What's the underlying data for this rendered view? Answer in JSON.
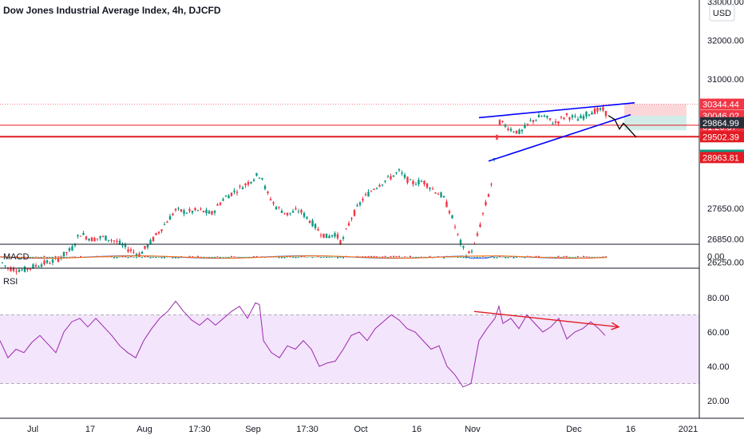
{
  "chart_data": {
    "type": "candlestick",
    "title": "Dow Jones Industrial Average Index, 4h, DJCFD",
    "currency_button": "USD",
    "price_axis_ticks": [
      {
        "label": "33000.00",
        "value": 33000
      },
      {
        "label": "32000.00",
        "value": 32000
      },
      {
        "label": "31000.00",
        "value": 31000
      },
      {
        "label": "27650.00",
        "value": 27650
      },
      {
        "label": "26850.00",
        "value": 26850
      },
      {
        "label": "26250.00",
        "value": 26250
      }
    ],
    "price_labels": [
      {
        "text": "30344.44",
        "value": 30344.44,
        "bg": "#f23645"
      },
      {
        "text": "30046.02",
        "value": 30046.02,
        "bg": "#f23645"
      },
      {
        "text": "01:26:37",
        "value": 29760,
        "bg": "#f23645"
      },
      {
        "text": "29864.99",
        "value": 29864.99,
        "bg": "#2a2e39"
      },
      {
        "text": "29502.39",
        "value": 29502.39,
        "bg": "#e31b23"
      },
      {
        "text": "29022.87",
        "value": 29022.87,
        "bg": "#089981"
      },
      {
        "text": "28963.81",
        "value": 28963.81,
        "bg": "#e31b23"
      }
    ],
    "horizontal_lines": [
      {
        "name": "resistance-line",
        "value": 29800,
        "color": "#e31b23"
      },
      {
        "name": "support-line",
        "value": 29502.39,
        "color": "#e31b23"
      }
    ],
    "date_labels": [
      "Jul",
      "17",
      "Aug",
      "17:30",
      "Sep",
      "17:30",
      "Oct",
      "16",
      "Nov",
      "Dec",
      "16",
      "2021"
    ],
    "price_path": [
      [
        0,
        26300
      ],
      [
        10,
        26100
      ],
      [
        30,
        26050
      ],
      [
        50,
        26200
      ],
      [
        70,
        26300
      ],
      [
        90,
        26600
      ],
      [
        100,
        27000
      ],
      [
        115,
        26850
      ],
      [
        130,
        26900
      ],
      [
        145,
        26800
      ],
      [
        160,
        26600
      ],
      [
        175,
        26450
      ],
      [
        190,
        26800
      ],
      [
        205,
        27200
      ],
      [
        220,
        27600
      ],
      [
        235,
        27550
      ],
      [
        250,
        27600
      ],
      [
        265,
        27500
      ],
      [
        280,
        27900
      ],
      [
        295,
        28100
      ],
      [
        310,
        28300
      ],
      [
        322,
        28500
      ],
      [
        328,
        28500
      ],
      [
        333,
        28100
      ],
      [
        345,
        27700
      ],
      [
        360,
        27500
      ],
      [
        375,
        27600
      ],
      [
        390,
        27300
      ],
      [
        400,
        27050
      ],
      [
        410,
        26900
      ],
      [
        420,
        27000
      ],
      [
        428,
        26750
      ],
      [
        440,
        27400
      ],
      [
        455,
        27900
      ],
      [
        470,
        28200
      ],
      [
        485,
        28400
      ],
      [
        500,
        28600
      ],
      [
        515,
        28300
      ],
      [
        530,
        28350
      ],
      [
        545,
        28100
      ],
      [
        555,
        27950
      ],
      [
        565,
        27500
      ],
      [
        575,
        26850
      ],
      [
        585,
        26400
      ],
      [
        595,
        26700
      ],
      [
        605,
        27500
      ],
      [
        615,
        28200
      ],
      [
        625,
        29900
      ],
      [
        640,
        29700
      ],
      [
        652,
        29600
      ],
      [
        665,
        29900
      ],
      [
        680,
        30050
      ],
      [
        695,
        29850
      ],
      [
        710,
        30050
      ],
      [
        725,
        29950
      ],
      [
        740,
        30150
      ],
      [
        755,
        30200
      ],
      [
        762,
        30050
      ]
    ],
    "pattern_upper": [
      [
        600,
        29995
      ],
      [
        795,
        30380
      ]
    ],
    "pattern_lower": [
      [
        612,
        28870
      ],
      [
        790,
        30075
      ]
    ],
    "projection": [
      [
        762,
        30050
      ],
      [
        770,
        29950
      ],
      [
        776,
        29700
      ],
      [
        781,
        29850
      ],
      [
        797,
        29490
      ]
    ],
    "position_tool": {
      "entry": 30046.02,
      "stop": 30344.44,
      "target": 29502.39
    },
    "macd": {
      "label": "MACD",
      "value_label": "0.00"
    },
    "rsi": {
      "label": "RSI",
      "ticks": [
        "80.00",
        "60.00",
        "40.00",
        "20.00"
      ],
      "band": [
        30,
        70
      ],
      "values": [
        [
          0,
          55
        ],
        [
          10,
          45
        ],
        [
          20,
          50
        ],
        [
          30,
          48
        ],
        [
          40,
          54
        ],
        [
          50,
          58
        ],
        [
          60,
          53
        ],
        [
          70,
          48
        ],
        [
          80,
          60
        ],
        [
          90,
          66
        ],
        [
          100,
          68
        ],
        [
          110,
          63
        ],
        [
          120,
          68
        ],
        [
          130,
          63
        ],
        [
          140,
          58
        ],
        [
          150,
          52
        ],
        [
          160,
          48
        ],
        [
          170,
          45
        ],
        [
          180,
          55
        ],
        [
          190,
          62
        ],
        [
          200,
          68
        ],
        [
          210,
          72
        ],
        [
          220,
          78
        ],
        [
          230,
          72
        ],
        [
          240,
          67
        ],
        [
          250,
          64
        ],
        [
          260,
          68
        ],
        [
          270,
          64
        ],
        [
          280,
          68
        ],
        [
          290,
          72
        ],
        [
          300,
          75
        ],
        [
          310,
          68
        ],
        [
          320,
          77
        ],
        [
          325,
          76
        ],
        [
          330,
          55
        ],
        [
          340,
          48
        ],
        [
          350,
          45
        ],
        [
          360,
          52
        ],
        [
          370,
          50
        ],
        [
          380,
          55
        ],
        [
          390,
          50
        ],
        [
          400,
          40
        ],
        [
          410,
          42
        ],
        [
          420,
          43
        ],
        [
          430,
          50
        ],
        [
          440,
          58
        ],
        [
          450,
          60
        ],
        [
          460,
          55
        ],
        [
          470,
          62
        ],
        [
          480,
          66
        ],
        [
          490,
          70
        ],
        [
          500,
          67
        ],
        [
          510,
          62
        ],
        [
          520,
          60
        ],
        [
          530,
          55
        ],
        [
          540,
          50
        ],
        [
          550,
          52
        ],
        [
          560,
          40
        ],
        [
          570,
          35
        ],
        [
          580,
          28
        ],
        [
          590,
          30
        ],
        [
          600,
          55
        ],
        [
          610,
          62
        ],
        [
          620,
          68
        ],
        [
          625,
          75
        ],
        [
          630,
          65
        ],
        [
          640,
          68
        ],
        [
          650,
          62
        ],
        [
          660,
          70
        ],
        [
          670,
          65
        ],
        [
          680,
          60
        ],
        [
          690,
          63
        ],
        [
          700,
          68
        ],
        [
          710,
          56
        ],
        [
          720,
          60
        ],
        [
          730,
          62
        ],
        [
          740,
          66
        ],
        [
          750,
          62
        ],
        [
          758,
          58
        ]
      ]
    },
    "arrows": {
      "price_down": [
        [
          762,
          30050
        ],
        [
          797,
          29490
        ]
      ],
      "rsi_divergence": [
        [
          594,
          72
        ],
        [
          775,
          63
        ]
      ]
    },
    "colors": {
      "up": "#089981",
      "down": "#f23645",
      "rsi_line": "#9c27b0",
      "rsi_band": "#f3e5fb",
      "pattern": "#0000ff",
      "ma": "#e31b23"
    }
  }
}
